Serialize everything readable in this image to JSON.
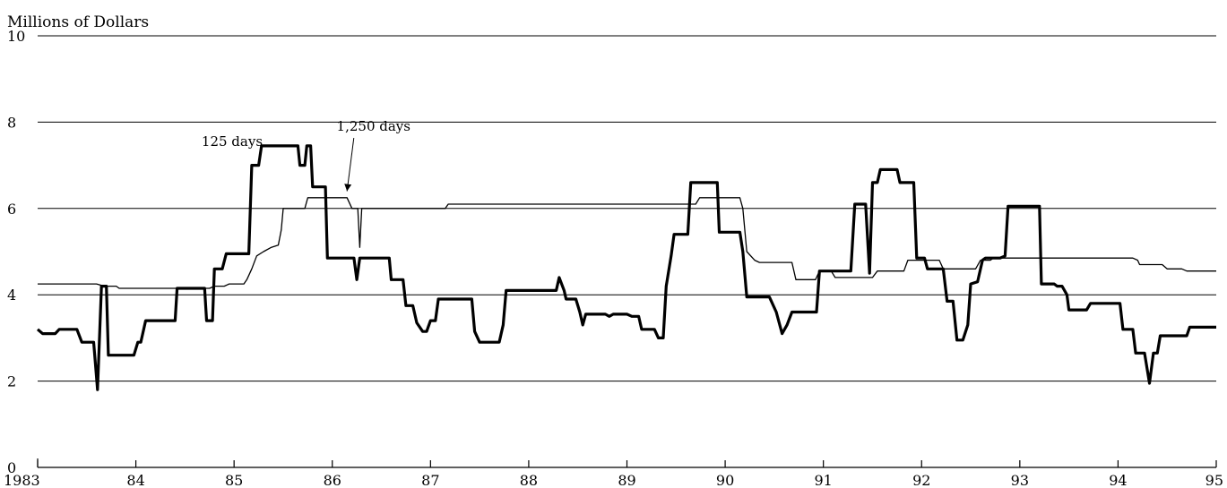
{
  "chart_data": {
    "type": "line",
    "title": "",
    "ylabel": "Millions of Dollars",
    "xlabel": "",
    "xlim": [
      1983,
      1995
    ],
    "ylim": [
      0,
      10
    ],
    "y_ticks": [
      0,
      2,
      4,
      6,
      8,
      10
    ],
    "x_ticks": [
      1983,
      1984,
      1985,
      1986,
      1987,
      1988,
      1989,
      1990,
      1991,
      1992,
      1993,
      1994,
      1995
    ],
    "x_tick_labels": [
      "1983",
      "84",
      "85",
      "86",
      "87",
      "88",
      "89",
      "90",
      "91",
      "92",
      "93",
      "94",
      "95"
    ],
    "grid": "horizontal",
    "annotations": [
      {
        "text": "125 days",
        "x": 1984.98,
        "y": 7.45,
        "series": "125 days"
      },
      {
        "text": "1,250 days",
        "x": 1986.42,
        "y": 7.8,
        "arrow_to": [
          1986.15,
          6.4
        ],
        "series": "1,250 days"
      }
    ],
    "series": [
      {
        "name": "125 days",
        "style": "thick",
        "points": [
          [
            1983.0,
            3.2
          ],
          [
            1983.05,
            3.1
          ],
          [
            1983.18,
            3.1
          ],
          [
            1983.22,
            3.2
          ],
          [
            1983.4,
            3.2
          ],
          [
            1983.45,
            2.9
          ],
          [
            1983.57,
            2.9
          ],
          [
            1983.61,
            1.8
          ],
          [
            1983.65,
            4.2
          ],
          [
            1983.7,
            4.2
          ],
          [
            1983.72,
            2.6
          ],
          [
            1983.98,
            2.6
          ],
          [
            1984.02,
            2.9
          ],
          [
            1984.05,
            2.9
          ],
          [
            1984.1,
            3.4
          ],
          [
            1984.4,
            3.4
          ],
          [
            1984.42,
            4.15
          ],
          [
            1984.7,
            4.15
          ],
          [
            1984.72,
            3.4
          ],
          [
            1984.78,
            3.4
          ],
          [
            1984.8,
            4.6
          ],
          [
            1984.88,
            4.6
          ],
          [
            1984.92,
            4.95
          ],
          [
            1985.15,
            4.95
          ],
          [
            1985.18,
            7.0
          ],
          [
            1985.25,
            7.0
          ],
          [
            1985.28,
            7.45
          ],
          [
            1985.65,
            7.45
          ],
          [
            1985.67,
            7.0
          ],
          [
            1985.72,
            7.0
          ],
          [
            1985.74,
            7.45
          ],
          [
            1985.78,
            7.45
          ],
          [
            1985.8,
            6.5
          ],
          [
            1985.93,
            6.5
          ],
          [
            1985.95,
            4.85
          ],
          [
            1986.22,
            4.85
          ],
          [
            1986.25,
            4.35
          ],
          [
            1986.28,
            4.85
          ],
          [
            1986.58,
            4.85
          ],
          [
            1986.6,
            4.35
          ],
          [
            1986.72,
            4.35
          ],
          [
            1986.75,
            3.75
          ],
          [
            1986.82,
            3.75
          ],
          [
            1986.86,
            3.35
          ],
          [
            1986.92,
            3.15
          ],
          [
            1986.96,
            3.15
          ],
          [
            1987.0,
            3.4
          ],
          [
            1987.05,
            3.4
          ],
          [
            1987.08,
            3.9
          ],
          [
            1987.42,
            3.9
          ],
          [
            1987.45,
            3.15
          ],
          [
            1987.5,
            2.9
          ],
          [
            1987.55,
            2.9
          ],
          [
            1987.7,
            2.9
          ],
          [
            1987.74,
            3.3
          ],
          [
            1987.77,
            4.1
          ],
          [
            1988.28,
            4.1
          ],
          [
            1988.31,
            4.4
          ],
          [
            1988.36,
            4.1
          ],
          [
            1988.38,
            3.9
          ],
          [
            1988.48,
            3.9
          ],
          [
            1988.52,
            3.6
          ],
          [
            1988.55,
            3.3
          ],
          [
            1988.58,
            3.55
          ],
          [
            1988.78,
            3.55
          ],
          [
            1988.82,
            3.5
          ],
          [
            1988.86,
            3.55
          ],
          [
            1989.0,
            3.55
          ],
          [
            1989.05,
            3.5
          ],
          [
            1989.12,
            3.5
          ],
          [
            1989.15,
            3.2
          ],
          [
            1989.28,
            3.2
          ],
          [
            1989.32,
            3.0
          ],
          [
            1989.37,
            3.0
          ],
          [
            1989.4,
            4.2
          ],
          [
            1989.45,
            4.9
          ],
          [
            1989.48,
            5.4
          ],
          [
            1989.62,
            5.4
          ],
          [
            1989.65,
            6.6
          ],
          [
            1989.92,
            6.6
          ],
          [
            1989.94,
            5.45
          ],
          [
            1990.15,
            5.45
          ],
          [
            1990.18,
            5.0
          ],
          [
            1990.22,
            3.95
          ],
          [
            1990.45,
            3.95
          ],
          [
            1990.52,
            3.6
          ],
          [
            1990.58,
            3.1
          ],
          [
            1990.63,
            3.3
          ],
          [
            1990.68,
            3.6
          ],
          [
            1990.93,
            3.6
          ],
          [
            1990.96,
            4.55
          ],
          [
            1991.28,
            4.55
          ],
          [
            1991.32,
            6.1
          ],
          [
            1991.43,
            6.1
          ],
          [
            1991.47,
            4.5
          ],
          [
            1991.5,
            6.6
          ],
          [
            1991.55,
            6.6
          ],
          [
            1991.58,
            6.9
          ],
          [
            1991.75,
            6.9
          ],
          [
            1991.78,
            6.6
          ],
          [
            1991.92,
            6.6
          ],
          [
            1991.95,
            4.85
          ],
          [
            1992.03,
            4.85
          ],
          [
            1992.06,
            4.6
          ],
          [
            1992.22,
            4.6
          ],
          [
            1992.26,
            3.85
          ],
          [
            1992.32,
            3.85
          ],
          [
            1992.36,
            2.95
          ],
          [
            1992.42,
            2.95
          ],
          [
            1992.47,
            3.3
          ],
          [
            1992.5,
            4.25
          ],
          [
            1992.57,
            4.3
          ],
          [
            1992.62,
            4.8
          ],
          [
            1992.65,
            4.85
          ],
          [
            1992.75,
            4.85
          ],
          [
            1992.8,
            4.85
          ],
          [
            1992.85,
            4.9
          ],
          [
            1992.88,
            6.05
          ],
          [
            1993.2,
            6.05
          ],
          [
            1993.22,
            4.25
          ],
          [
            1993.35,
            4.25
          ],
          [
            1993.38,
            4.2
          ],
          [
            1993.43,
            4.2
          ],
          [
            1993.48,
            4.0
          ],
          [
            1993.5,
            3.65
          ],
          [
            1993.68,
            3.65
          ],
          [
            1993.72,
            3.8
          ],
          [
            1994.02,
            3.8
          ],
          [
            1994.05,
            3.2
          ],
          [
            1994.15,
            3.2
          ],
          [
            1994.18,
            2.65
          ],
          [
            1994.27,
            2.65
          ],
          [
            1994.32,
            1.95
          ],
          [
            1994.36,
            2.65
          ],
          [
            1994.4,
            2.65
          ],
          [
            1994.43,
            3.05
          ],
          [
            1994.7,
            3.05
          ],
          [
            1994.73,
            3.25
          ],
          [
            1995.0,
            3.25
          ]
        ]
      },
      {
        "name": "1,250 days",
        "style": "thin",
        "points": [
          [
            1983.0,
            4.25
          ],
          [
            1983.6,
            4.25
          ],
          [
            1983.68,
            4.2
          ],
          [
            1983.8,
            4.2
          ],
          [
            1983.83,
            4.15
          ],
          [
            1984.75,
            4.15
          ],
          [
            1984.8,
            4.2
          ],
          [
            1984.9,
            4.2
          ],
          [
            1984.95,
            4.25
          ],
          [
            1985.1,
            4.25
          ],
          [
            1985.13,
            4.35
          ],
          [
            1985.18,
            4.6
          ],
          [
            1985.23,
            4.9
          ],
          [
            1985.3,
            5.0
          ],
          [
            1985.38,
            5.1
          ],
          [
            1985.45,
            5.15
          ],
          [
            1985.48,
            5.5
          ],
          [
            1985.5,
            6.0
          ],
          [
            1985.72,
            6.0
          ],
          [
            1985.75,
            6.25
          ],
          [
            1986.15,
            6.25
          ],
          [
            1986.2,
            6.0
          ],
          [
            1986.26,
            6.0
          ],
          [
            1986.28,
            5.1
          ],
          [
            1986.3,
            6.0
          ],
          [
            1987.15,
            6.0
          ],
          [
            1987.18,
            6.1
          ],
          [
            1989.7,
            6.1
          ],
          [
            1989.74,
            6.25
          ],
          [
            1990.15,
            6.25
          ],
          [
            1990.18,
            6.0
          ],
          [
            1990.22,
            5.0
          ],
          [
            1990.3,
            4.8
          ],
          [
            1990.35,
            4.75
          ],
          [
            1990.68,
            4.75
          ],
          [
            1990.72,
            4.35
          ],
          [
            1990.92,
            4.35
          ],
          [
            1990.96,
            4.55
          ],
          [
            1991.08,
            4.55
          ],
          [
            1991.12,
            4.4
          ],
          [
            1991.5,
            4.4
          ],
          [
            1991.55,
            4.55
          ],
          [
            1991.82,
            4.55
          ],
          [
            1991.86,
            4.8
          ],
          [
            1992.18,
            4.8
          ],
          [
            1992.22,
            4.6
          ],
          [
            1992.55,
            4.6
          ],
          [
            1992.6,
            4.8
          ],
          [
            1992.7,
            4.8
          ],
          [
            1992.73,
            4.85
          ],
          [
            1994.15,
            4.85
          ],
          [
            1994.2,
            4.8
          ],
          [
            1994.22,
            4.7
          ],
          [
            1994.45,
            4.7
          ],
          [
            1994.5,
            4.6
          ],
          [
            1994.65,
            4.6
          ],
          [
            1994.7,
            4.55
          ],
          [
            1995.0,
            4.55
          ]
        ]
      }
    ]
  }
}
